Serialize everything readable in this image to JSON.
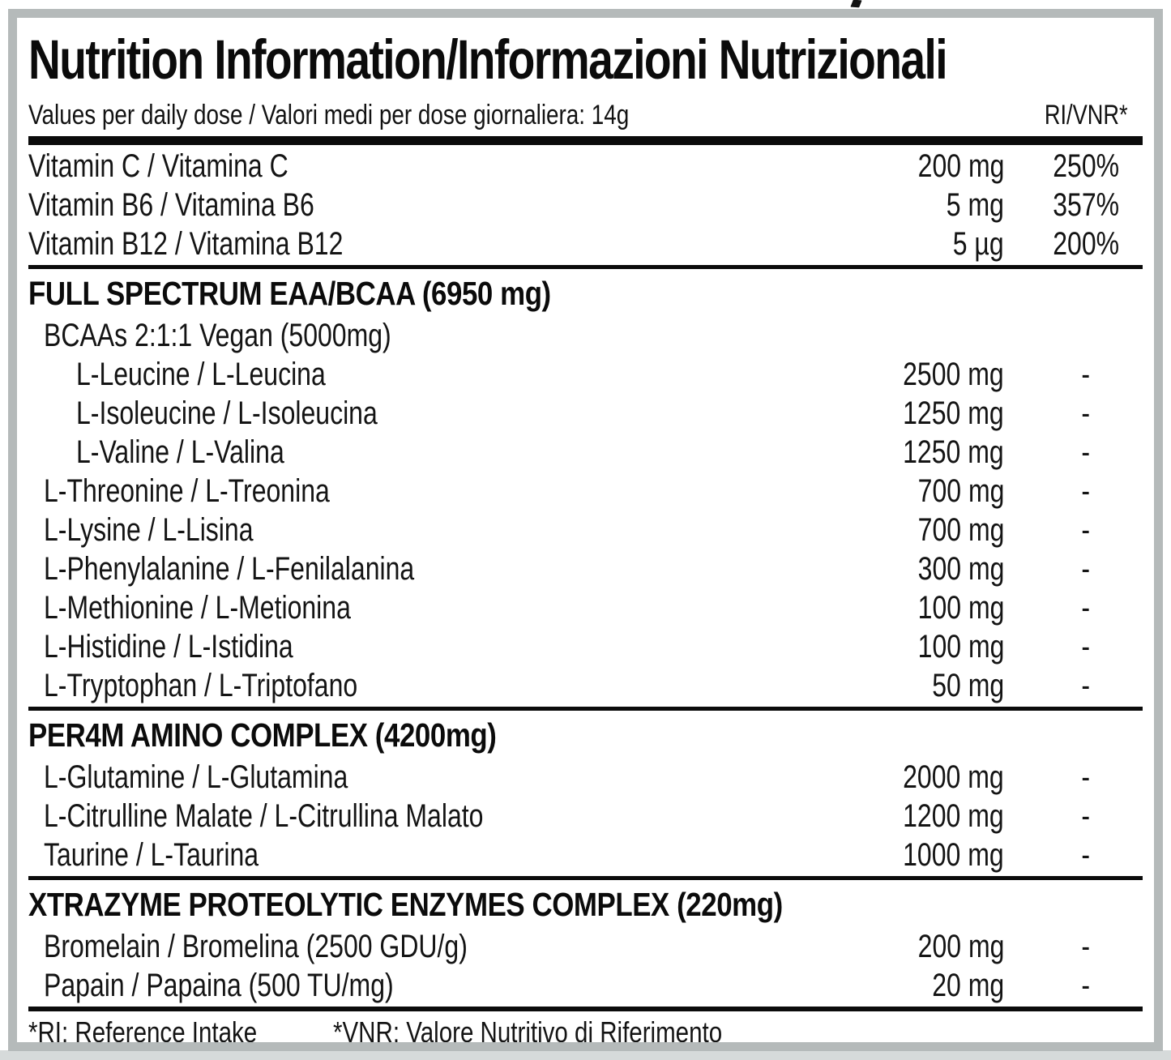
{
  "label": {
    "title": "Nutrition Information/Informazioni Nutrizionali",
    "subtitle": "Values per daily dose / Valori medi per dose giornaliera: 14g",
    "ri_column_header": "RI/VNR*"
  },
  "table": {
    "sections": [
      {
        "header": null,
        "rows": [
          {
            "label": "Vitamin C / Vitamina C",
            "amount": "200 mg",
            "ri": "250%",
            "indent": 0
          },
          {
            "label": "Vitamin B6 / Vitamina B6",
            "amount": "5 mg",
            "ri": "357%",
            "indent": 0
          },
          {
            "label": "Vitamin B12 / Vitamina B12",
            "amount": "5 µg",
            "ri": "200%",
            "indent": 0
          }
        ]
      },
      {
        "header": "FULL SPECTRUM EAA/BCAA (6950 mg)",
        "rows": [
          {
            "label": "BCAAs 2:1:1 Vegan (5000mg)",
            "amount": "",
            "ri": "",
            "indent": 1
          },
          {
            "label": "L-Leucine / L-Leucina",
            "amount": "2500 mg",
            "ri": "-",
            "indent": 2
          },
          {
            "label": "L-Isoleucine / L-Isoleucina",
            "amount": "1250 mg",
            "ri": "-",
            "indent": 2
          },
          {
            "label": "L-Valine / L-Valina",
            "amount": "1250 mg",
            "ri": "-",
            "indent": 2
          },
          {
            "label": "L-Threonine / L-Treonina",
            "amount": "700 mg",
            "ri": "-",
            "indent": 1
          },
          {
            "label": "L-Lysine / L-Lisina",
            "amount": "700 mg",
            "ri": "-",
            "indent": 1
          },
          {
            "label": "L-Phenylalanine / L-Fenilalanina",
            "amount": "300 mg",
            "ri": "-",
            "indent": 1
          },
          {
            "label": "L-Methionine / L-Metionina",
            "amount": "100 mg",
            "ri": "-",
            "indent": 1
          },
          {
            "label": "L-Histidine / L-Istidina",
            "amount": "100 mg",
            "ri": "-",
            "indent": 1
          },
          {
            "label": "L-Tryptophan / L-Triptofano",
            "amount": "50 mg",
            "ri": "-",
            "indent": 1
          }
        ]
      },
      {
        "header": "PER4M AMINO COMPLEX (4200mg)",
        "rows": [
          {
            "label": "L-Glutamine / L-Glutamina",
            "amount": "2000 mg",
            "ri": "-",
            "indent": 1
          },
          {
            "label": "L-Citrulline Malate / L-Citrullina Malato",
            "amount": "1200 mg",
            "ri": "-",
            "indent": 1
          },
          {
            "label": "Taurine / L-Taurina",
            "amount": "1000 mg",
            "ri": "-",
            "indent": 1
          }
        ]
      },
      {
        "header": "XTRAZYME PROTEOLYTIC ENZYMES COMPLEX (220mg)",
        "rows": [
          {
            "label": "Bromelain / Bromelina (2500 GDU/g)",
            "amount": "200 mg",
            "ri": "-",
            "indent": 1
          },
          {
            "label": "Papain / Papaina (500 TU/mg)",
            "amount": "20 mg",
            "ri": "-",
            "indent": 1
          }
        ]
      }
    ]
  },
  "footer": {
    "ri_note": "*RI: Reference Intake",
    "vnr_note": "*VNR: Valore Nutritivo di Riferimento"
  },
  "colors": {
    "text": "#141414",
    "divider": "#0b0b0b",
    "card_border": "#b5baba",
    "page_bottom_strip": "#d6dada",
    "background": "#ffffff"
  }
}
